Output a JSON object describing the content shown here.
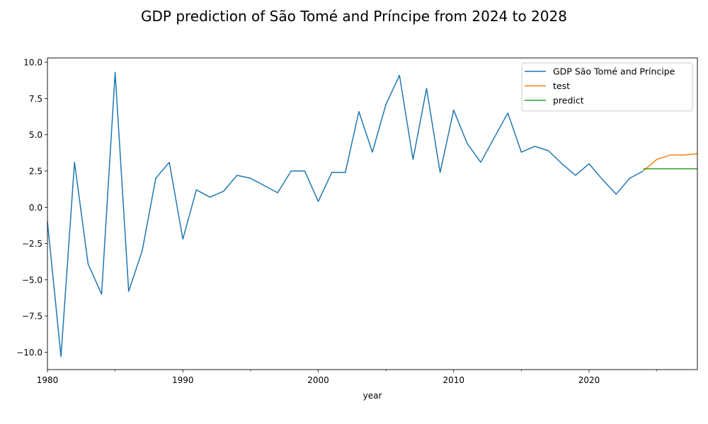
{
  "chart_data": {
    "type": "line",
    "title": "GDP prediction of São Tomé and Príncipe from 2024 to 2028",
    "xlabel": "year",
    "ylabel": "",
    "xlim": [
      1980,
      2028
    ],
    "ylim": [
      -11.2,
      10.3
    ],
    "x_major_ticks": [
      1980,
      1990,
      2000,
      2010,
      2020
    ],
    "x_minor_ticks": [
      1985,
      1995,
      2005,
      2015,
      2025
    ],
    "y_ticks": [
      10.0,
      7.5,
      5.0,
      2.5,
      0.0,
      -2.5,
      -5.0,
      -7.5,
      -10.0
    ],
    "y_tick_labels": [
      "10.0",
      "7.5",
      "5.0",
      "2.5",
      "0.0",
      "−2.5",
      "−5.0",
      "−7.5",
      "−10.0"
    ],
    "grid": false,
    "legend_position": "top-right",
    "series": [
      {
        "name": "GDP São Tomé and Príncipe",
        "color": "#1f77b4",
        "x": [
          1980,
          1981,
          1982,
          1983,
          1984,
          1985,
          1986,
          1987,
          1988,
          1989,
          1990,
          1991,
          1992,
          1993,
          1994,
          1995,
          1996,
          1997,
          1998,
          1999,
          2000,
          2001,
          2002,
          2003,
          2004,
          2005,
          2006,
          2007,
          2008,
          2009,
          2010,
          2011,
          2012,
          2013,
          2014,
          2015,
          2016,
          2017,
          2018,
          2019,
          2020,
          2021,
          2022,
          2023,
          2024
        ],
        "y": [
          -1.0,
          -10.3,
          3.1,
          -3.9,
          -6.0,
          9.3,
          -5.8,
          -3.0,
          2.0,
          3.1,
          -2.2,
          1.2,
          0.7,
          1.1,
          2.2,
          2.0,
          1.5,
          1.0,
          2.5,
          2.5,
          0.4,
          2.4,
          2.4,
          6.6,
          3.8,
          7.1,
          9.1,
          3.3,
          8.2,
          2.4,
          6.7,
          4.4,
          3.1,
          4.8,
          6.5,
          3.8,
          4.2,
          3.9,
          3.0,
          2.2,
          3.0,
          1.9,
          0.9,
          2.0,
          2.5
        ]
      },
      {
        "name": "test",
        "color": "#ff7f0e",
        "x": [
          2024,
          2025,
          2026,
          2027,
          2028
        ],
        "y": [
          2.5,
          3.3,
          3.6,
          3.6,
          3.7
        ]
      },
      {
        "name": "predict",
        "color": "#2ca02c",
        "x": [
          2024,
          2025,
          2026,
          2027,
          2028
        ],
        "y": [
          2.65,
          2.65,
          2.65,
          2.65,
          2.65
        ]
      }
    ]
  }
}
